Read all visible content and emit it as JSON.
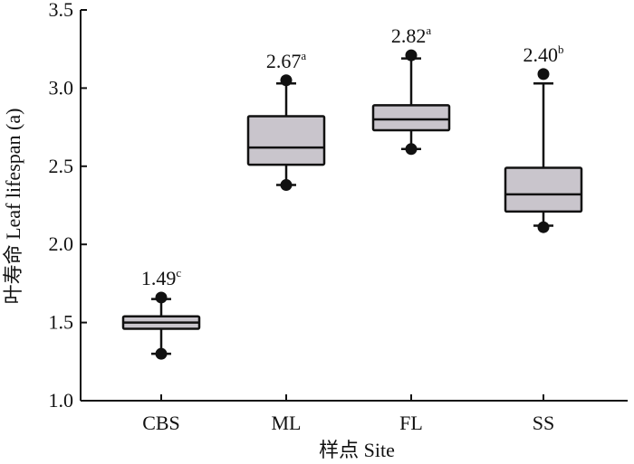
{
  "chart_data": {
    "type": "box",
    "xlabel": "样点 Site",
    "ylabel": "叶寿命 Leaf lifespan (a)",
    "ylim": [
      1.0,
      3.5
    ],
    "yticks": [
      "1.0",
      "1.5",
      "2.0",
      "2.5",
      "3.0",
      "3.5"
    ],
    "grid": false,
    "box_color": "#c9c5cc",
    "categories": [
      "CBS",
      "ML",
      "FL",
      "SS"
    ],
    "boxes": [
      {
        "site": "CBS",
        "q1": 1.46,
        "median": 1.5,
        "q3": 1.54,
        "whisker_low": 1.3,
        "whisker_high": 1.65,
        "outliers": [
          1.3,
          1.66
        ],
        "mean_label": "1.49",
        "letter": "c"
      },
      {
        "site": "ML",
        "q1": 2.51,
        "median": 2.62,
        "q3": 2.82,
        "whisker_low": 2.38,
        "whisker_high": 3.03,
        "outliers": [
          2.38,
          3.05
        ],
        "mean_label": "2.67",
        "letter": "a"
      },
      {
        "site": "FL",
        "q1": 2.73,
        "median": 2.8,
        "q3": 2.89,
        "whisker_low": 2.61,
        "whisker_high": 3.19,
        "outliers": [
          2.61,
          3.21
        ],
        "mean_label": "2.82",
        "letter": "a"
      },
      {
        "site": "SS",
        "q1": 2.21,
        "median": 2.32,
        "q3": 2.49,
        "whisker_low": 2.12,
        "whisker_high": 3.03,
        "outliers": [
          2.11,
          3.09
        ],
        "mean_label": "2.40",
        "letter": "b"
      }
    ]
  }
}
